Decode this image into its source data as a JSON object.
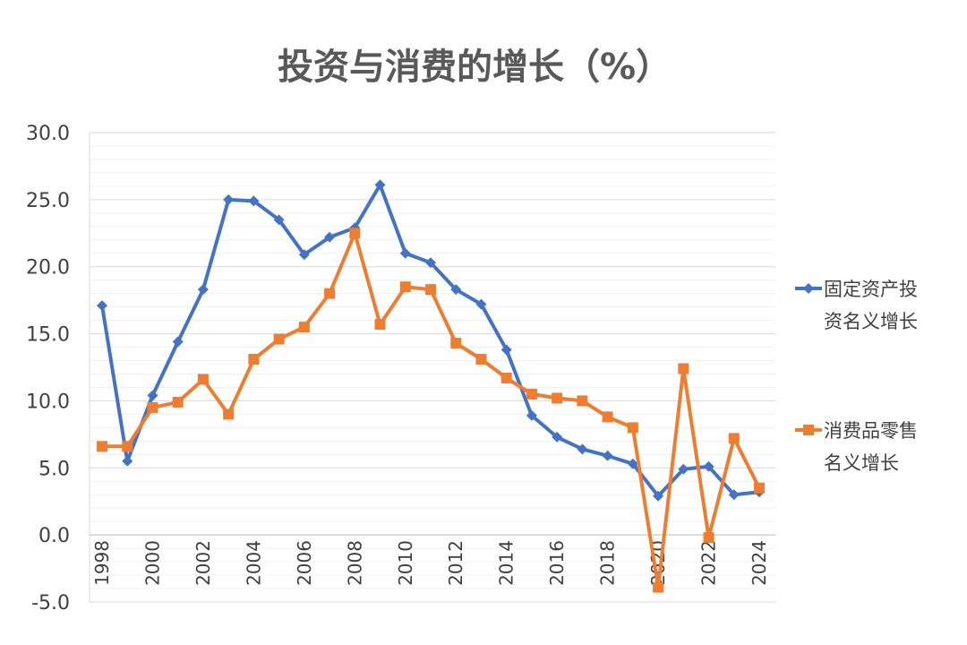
{
  "chart_data": {
    "type": "line",
    "title": "投资与消费的增长（%）",
    "xlabel": "",
    "ylabel": "",
    "ylim": [
      -5,
      30
    ],
    "yticks": [
      "30.0",
      "25.0",
      "20.0",
      "15.0",
      "10.0",
      "5.0",
      "0.0",
      "-5.0"
    ],
    "ytick_values": [
      30,
      25,
      20,
      15,
      10,
      5,
      0,
      -5
    ],
    "x": [
      1998,
      1999,
      2000,
      2001,
      2002,
      2003,
      2004,
      2005,
      2006,
      2007,
      2008,
      2009,
      2010,
      2011,
      2012,
      2013,
      2014,
      2015,
      2016,
      2017,
      2018,
      2019,
      2020,
      2021,
      2022,
      2023,
      2024
    ],
    "xtick_labels": [
      "1998",
      "2000",
      "2002",
      "2004",
      "2006",
      "2008",
      "2010",
      "2012",
      "2014",
      "2016",
      "2018",
      "2020",
      "2022",
      "2024"
    ],
    "grid": true,
    "legend_position": "right",
    "series": [
      {
        "name": "固定资产投资名义增长",
        "legend_lines": [
          "固定资产投",
          "资名义增长"
        ],
        "color": "#4472C4",
        "marker": "diamond",
        "values": [
          17.1,
          5.5,
          10.4,
          14.4,
          18.3,
          25.0,
          24.9,
          23.5,
          20.9,
          22.2,
          22.9,
          26.1,
          21.0,
          20.3,
          18.3,
          17.2,
          13.8,
          8.9,
          7.3,
          6.4,
          5.9,
          5.3,
          2.9,
          4.9,
          5.1,
          3.0,
          3.2
        ]
      },
      {
        "name": "消费品零售名义增长",
        "legend_lines": [
          "消费品零售",
          "名义增长"
        ],
        "color": "#ED7D31",
        "marker": "square",
        "values": [
          6.6,
          6.6,
          9.5,
          9.9,
          11.6,
          9.0,
          13.1,
          14.6,
          15.5,
          18.0,
          22.5,
          15.7,
          18.5,
          18.3,
          14.3,
          13.1,
          11.7,
          10.5,
          10.2,
          10.0,
          8.8,
          8.0,
          -3.9,
          12.4,
          -0.2,
          7.2,
          3.5
        ]
      }
    ]
  }
}
